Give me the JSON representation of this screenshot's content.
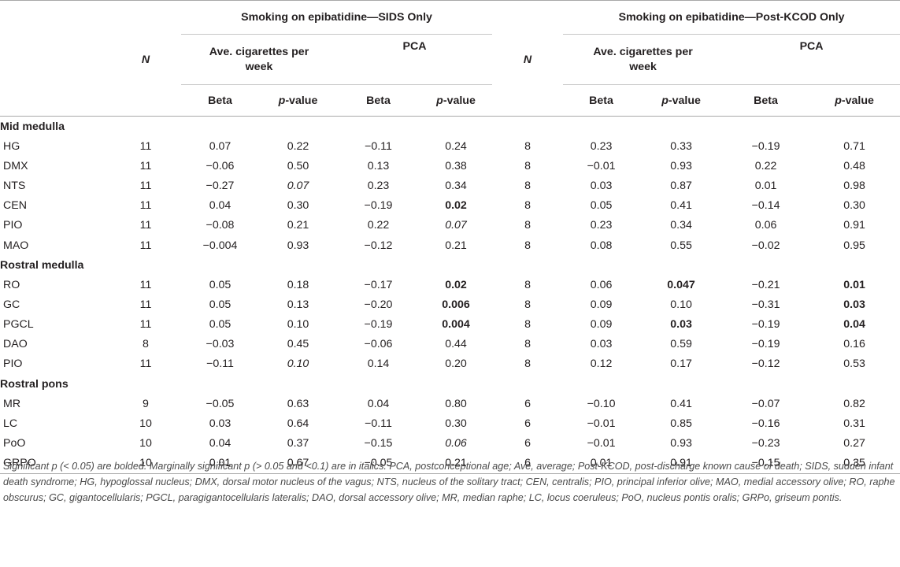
{
  "groups": {
    "sids": "Smoking on epibatidine—SIDS Only",
    "kcod": "Smoking on epibatidine—Post-KCOD Only"
  },
  "headers": {
    "n": "N",
    "cig": "Ave. cigarettes per week",
    "pca": "PCA",
    "beta": "Beta",
    "pvalue_p": "p",
    "pvalue_rest": "-value"
  },
  "sections": [
    {
      "title": "Mid medulla",
      "rows": [
        {
          "name": "HG",
          "n1": "11",
          "b1": "0.07",
          "p1": "0.22",
          "b2": "−0.11",
          "p2": "0.24",
          "n2": "8",
          "b3": "0.23",
          "p3": "0.33",
          "b4": "−0.19",
          "p4": "0.71"
        },
        {
          "name": "DMX",
          "n1": "11",
          "b1": "−0.06",
          "p1": "0.50",
          "b2": "0.13",
          "p2": "0.38",
          "n2": "8",
          "b3": "−0.01",
          "p3": "0.93",
          "b4": "0.22",
          "p4": "0.48"
        },
        {
          "name": "NTS",
          "n1": "11",
          "b1": "−0.27",
          "p1": "0.07",
          "p1_style": "i",
          "b2": "0.23",
          "p2": "0.34",
          "n2": "8",
          "b3": "0.03",
          "p3": "0.87",
          "b4": "0.01",
          "p4": "0.98"
        },
        {
          "name": "CEN",
          "n1": "11",
          "b1": "0.04",
          "p1": "0.30",
          "b2": "−0.19",
          "p2": "0.02",
          "p2_style": "b",
          "n2": "8",
          "b3": "0.05",
          "p3": "0.41",
          "b4": "−0.14",
          "p4": "0.30"
        },
        {
          "name": "PIO",
          "n1": "11",
          "b1": "−0.08",
          "p1": "0.21",
          "b2": "0.22",
          "p2": "0.07",
          "p2_style": "i",
          "n2": "8",
          "b3": "0.23",
          "p3": "0.34",
          "b4": "0.06",
          "p4": "0.91"
        },
        {
          "name": "MAO",
          "n1": "11",
          "b1": "−0.004",
          "p1": "0.93",
          "b2": "−0.12",
          "p2": "0.21",
          "n2": "8",
          "b3": "0.08",
          "p3": "0.55",
          "b4": "−0.02",
          "p4": "0.95"
        }
      ]
    },
    {
      "title": "Rostral medulla",
      "rows": [
        {
          "name": "RO",
          "n1": "11",
          "b1": "0.05",
          "p1": "0.18",
          "b2": "−0.17",
          "p2": "0.02",
          "p2_style": "b",
          "n2": "8",
          "b3": "0.06",
          "p3": "0.047",
          "p3_style": "b",
          "b4": "−0.21",
          "p4": "0.01",
          "p4_style": "b"
        },
        {
          "name": "GC",
          "n1": "11",
          "b1": "0.05",
          "p1": "0.13",
          "b2": "−0.20",
          "p2": "0.006",
          "p2_style": "b",
          "n2": "8",
          "b3": "0.09",
          "p3": "0.10",
          "b4": "−0.31",
          "p4": "0.03",
          "p4_style": "b"
        },
        {
          "name": "PGCL",
          "n1": "11",
          "b1": "0.05",
          "p1": "0.10",
          "b2": "−0.19",
          "p2": "0.004",
          "p2_style": "b",
          "n2": "8",
          "b3": "0.09",
          "p3": "0.03",
          "p3_style": "b",
          "b4": "−0.19",
          "p4": "0.04",
          "p4_style": "b"
        },
        {
          "name": "DAO",
          "n1": "8",
          "b1": "−0.03",
          "p1": "0.45",
          "b2": "−0.06",
          "p2": "0.44",
          "n2": "8",
          "b3": "0.03",
          "p3": "0.59",
          "b4": "−0.19",
          "p4": "0.16"
        },
        {
          "name": "PIO",
          "n1": "11",
          "b1": "−0.11",
          "p1": "0.10",
          "p1_style": "i",
          "b2": "0.14",
          "p2": "0.20",
          "n2": "8",
          "b3": "0.12",
          "p3": "0.17",
          "b4": "−0.12",
          "p4": "0.53"
        }
      ]
    },
    {
      "title": "Rostral pons",
      "rows": [
        {
          "name": "MR",
          "n1": "9",
          "b1": "−0.05",
          "p1": "0.63",
          "b2": "0.04",
          "p2": "0.80",
          "n2": "6",
          "b3": "−0.10",
          "p3": "0.41",
          "b4": "−0.07",
          "p4": "0.82"
        },
        {
          "name": "LC",
          "n1": "10",
          "b1": "0.03",
          "p1": "0.64",
          "b2": "−0.11",
          "p2": "0.30",
          "n2": "6",
          "b3": "−0.01",
          "p3": "0.85",
          "b4": "−0.16",
          "p4": "0.31"
        },
        {
          "name": "PoO",
          "n1": "10",
          "b1": "0.04",
          "p1": "0.37",
          "b2": "−0.15",
          "p2": "0.06",
          "p2_style": "i",
          "n2": "6",
          "b3": "−0.01",
          "p3": "0.93",
          "b4": "−0.23",
          "p4": "0.27"
        },
        {
          "name": "GRPO",
          "n1": "10",
          "b1": "0.01",
          "p1": "0.67",
          "b2": "−0.05",
          "p2": "0.21",
          "n2": "6",
          "b3": "0.01",
          "p3": "0.91",
          "b4": "−0.15",
          "p4": "0.35"
        }
      ]
    }
  ],
  "footnote": "Significant p (< 0.05) are bolded. Marginally significant p (> 0.05 and <0.1) are in italics. PCA, postconceptional age; Ave, average; Post-KCOD, post-discharge known cause of death; SIDS, sudden infant death syndrome; HG, hypoglossal nucleus; DMX, dorsal motor nucleus of the vagus; NTS, nucleus of the solitary tract; CEN, centralis; PIO, principal inferior olive; MAO, medial accessory olive; RO, raphe obscurus; GC, gigantocellularis; PGCL, paragigantocellularis lateralis; DAO, dorsal accessory olive; MR, median raphe; LC, locus coeruleus; PoO, nucleus pontis oralis; GRPo, griseum pontis."
}
